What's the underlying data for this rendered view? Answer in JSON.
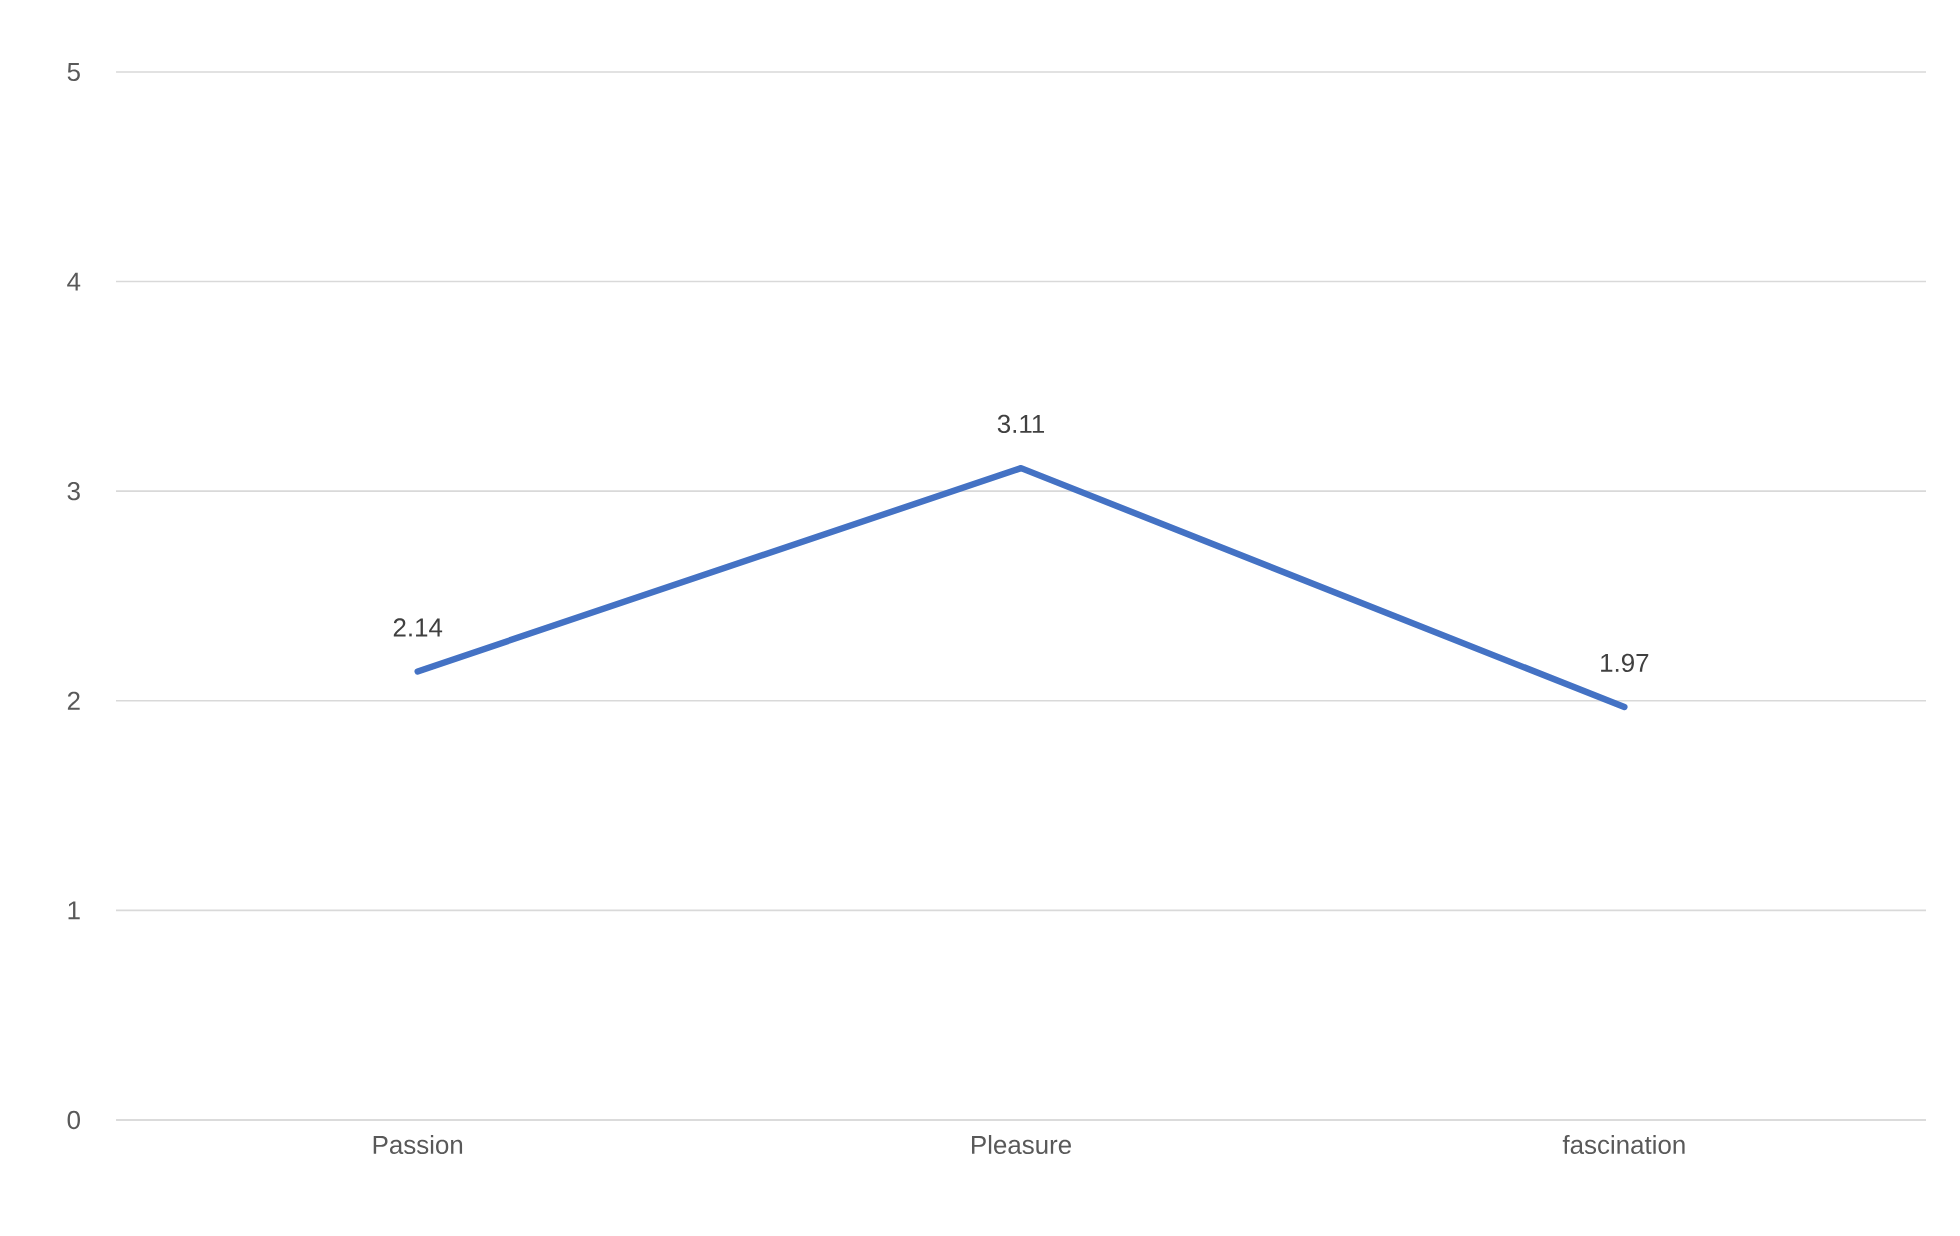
{
  "chart_data": {
    "type": "line",
    "categories": [
      "Passion",
      "Pleasure",
      "fascination"
    ],
    "series": [
      {
        "color": "#4472c4",
        "values": [
          2.14,
          3.11,
          1.97
        ]
      }
    ],
    "ylim": [
      0,
      5
    ],
    "yticks": [
      0,
      1,
      2,
      3,
      4,
      5
    ],
    "grid": "y",
    "data_labels": true,
    "marker": "none",
    "line_style": "solid"
  }
}
